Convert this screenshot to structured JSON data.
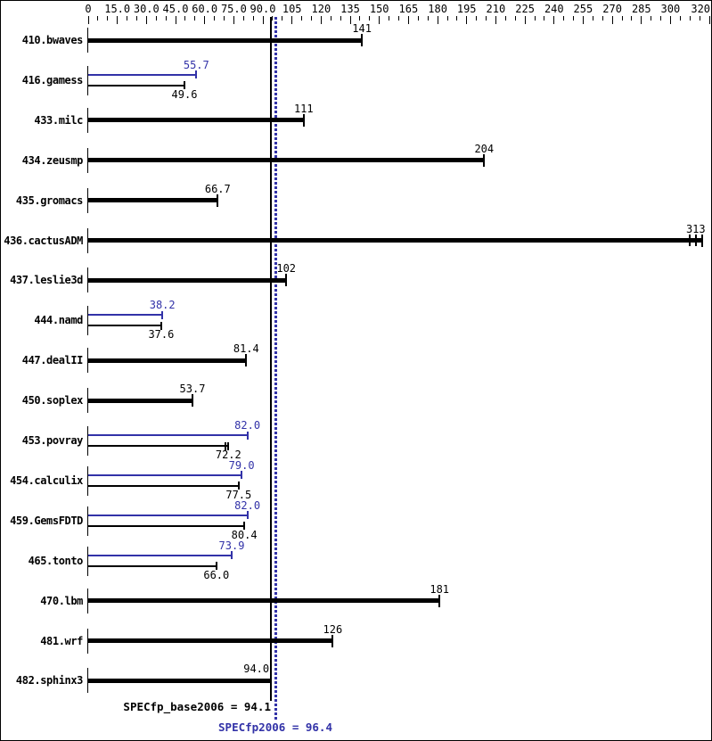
{
  "chart_data": {
    "type": "bar",
    "orientation": "horizontal",
    "axis": {
      "position": "top",
      "min": 0,
      "max": 320,
      "major_tick_values": [
        0,
        15,
        30,
        45,
        60,
        75,
        90,
        105,
        120,
        135,
        150,
        165,
        180,
        195,
        210,
        225,
        240,
        255,
        270,
        285,
        300,
        320
      ],
      "major_tick_labels": [
        "0",
        "15.0",
        "30.0",
        "45.0",
        "60.0",
        "75.0",
        "90.0",
        "105",
        "120",
        "135",
        "150",
        "165",
        "180",
        "195",
        "210",
        "225",
        "240",
        "255",
        "270",
        "285",
        "300",
        "320"
      ],
      "minor_tick_step": 5
    },
    "benchmarks": [
      {
        "name": "410.bwaves",
        "base": {
          "value": 141,
          "label": "141"
        }
      },
      {
        "name": "416.gamess",
        "peak": {
          "value": 55.7,
          "label": "55.7"
        },
        "base": {
          "value": 49.6,
          "label": "49.6"
        }
      },
      {
        "name": "433.milc",
        "base": {
          "value": 111,
          "label": "111"
        }
      },
      {
        "name": "434.zeusmp",
        "base": {
          "value": 204,
          "label": "204"
        }
      },
      {
        "name": "435.gromacs",
        "base": {
          "value": 66.7,
          "label": "66.7"
        }
      },
      {
        "name": "436.cactusADM",
        "base": {
          "value": 313,
          "label": "313",
          "bar_end": 316.5,
          "run_ticks": [
            309.7,
            313.2
          ]
        }
      },
      {
        "name": "437.leslie3d",
        "base": {
          "value": 102,
          "label": "102"
        }
      },
      {
        "name": "444.namd",
        "peak": {
          "value": 38.2,
          "label": "38.2"
        },
        "base": {
          "value": 37.6,
          "label": "37.6"
        }
      },
      {
        "name": "447.dealII",
        "base": {
          "value": 81.4,
          "label": "81.4"
        }
      },
      {
        "name": "450.soplex",
        "base": {
          "value": 53.7,
          "label": "53.7"
        }
      },
      {
        "name": "453.povray",
        "peak": {
          "value": 82.0,
          "label": "82.0"
        },
        "base": {
          "value": 72.2,
          "label": "72.2",
          "run_ticks": [
            70.8
          ]
        }
      },
      {
        "name": "454.calculix",
        "peak": {
          "value": 79.0,
          "label": "79.0"
        },
        "base": {
          "value": 77.5,
          "label": "77.5"
        }
      },
      {
        "name": "459.GemsFDTD",
        "peak": {
          "value": 82.0,
          "label": "82.0"
        },
        "base": {
          "value": 80.4,
          "label": "80.4"
        }
      },
      {
        "name": "465.tonto",
        "peak": {
          "value": 73.9,
          "label": "73.9"
        },
        "base": {
          "value": 66.0,
          "label": "66.0"
        }
      },
      {
        "name": "470.lbm",
        "base": {
          "value": 181,
          "label": "181"
        }
      },
      {
        "name": "481.wrf",
        "base": {
          "value": 126,
          "label": "126"
        }
      },
      {
        "name": "482.sphinx3",
        "base": {
          "value": 94.0,
          "label": "94.0",
          "label_dx": -16
        }
      }
    ],
    "base_metric": {
      "label": "SPECfp_base2006 = 94.1",
      "value": 94.1,
      "line_style": "solid"
    },
    "peak_metric": {
      "label": "SPECfp2006 = 96.4",
      "value": 96.4,
      "line_style": "dotted"
    },
    "colors": {
      "base": "#000000",
      "peak": "#3232a8",
      "background": "#ffffff",
      "border": "#000000"
    }
  }
}
